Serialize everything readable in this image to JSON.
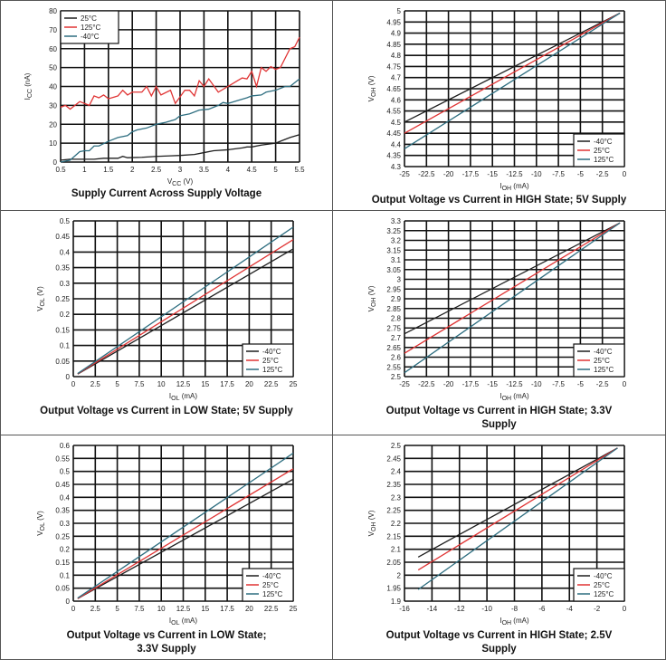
{
  "colors": {
    "-40°C": "#1e1e1e",
    "25°C": "#1e1e1e",
    "125°C": "#e03434",
    "grid": "#111"
  },
  "chart_data": [
    {
      "type": "line",
      "title": "Supply Current Across Supply Voltage",
      "xlabel": {
        "main": "V",
        "sub": "CC",
        "unit": " (V)"
      },
      "ylabel": {
        "main": "I",
        "sub": "CC",
        "unit": " (nA)"
      },
      "xlim": [
        0.5,
        5.5
      ],
      "xstep": 0.5,
      "ylim": [
        0,
        80
      ],
      "ystep": 10,
      "legend": "top-left",
      "grid": true,
      "series": [
        {
          "name": "25°C",
          "color": "#1e1e1e",
          "x": [
            0.5,
            0.7,
            1,
            1.2,
            1.4,
            1.7,
            1.8,
            1.9,
            2.2,
            2.5,
            2.8,
            3,
            3.3,
            3.5,
            3.7,
            4,
            4.3,
            4.4,
            4.5,
            4.7,
            5,
            5.1,
            5.3,
            5.5
          ],
          "y": [
            1,
            1.5,
            1.5,
            1.5,
            2,
            2,
            3,
            2.3,
            2.5,
            3,
            3.3,
            3.5,
            4,
            5,
            6,
            6.5,
            7.5,
            8,
            8,
            9,
            10,
            11,
            13,
            14.5
          ]
        },
        {
          "name": "125°C",
          "color": "#e03434",
          "x": [
            0.5,
            0.6,
            0.7,
            0.9,
            1.1,
            1.2,
            1.3,
            1.4,
            1.5,
            1.7,
            1.8,
            1.9,
            2,
            2.2,
            2.3,
            2.4,
            2.5,
            2.6,
            2.8,
            2.9,
            3.1,
            3.2,
            3.3,
            3.4,
            3.5,
            3.6,
            3.8,
            4,
            4.2,
            4.3,
            4.4,
            4.5,
            4.6,
            4.7,
            4.8,
            4.9,
            5,
            5.1,
            5.3,
            5.4,
            5.5
          ],
          "y": [
            29,
            30,
            28,
            32,
            30,
            35,
            34,
            35.5,
            33.5,
            35,
            38,
            35.5,
            37,
            37,
            40,
            35,
            40,
            35.5,
            38,
            31,
            38,
            38,
            35,
            43,
            40,
            44,
            37,
            40,
            43,
            44.5,
            44,
            48,
            40,
            50,
            48,
            50.5,
            49,
            50,
            60,
            61,
            66
          ]
        },
        {
          "name": "-40°C",
          "color": "#2e6e80",
          "x": [
            0.5,
            0.7,
            0.9,
            1,
            1.1,
            1.2,
            1.3,
            1.5,
            1.7,
            1.9,
            2,
            2.1,
            2.3,
            2.5,
            2.7,
            2.9,
            3,
            3.2,
            3.4,
            3.6,
            3.8,
            3.9,
            4,
            4.2,
            4.4,
            4.5,
            4.7,
            4.8,
            5,
            5.2,
            5.3,
            5.5
          ],
          "y": [
            0,
            1,
            5.5,
            6,
            6,
            8.5,
            8.5,
            11,
            13,
            14,
            16,
            17,
            18,
            20,
            21,
            22.5,
            24.5,
            25.5,
            27.5,
            28,
            30,
            31.5,
            31,
            32.5,
            34,
            35,
            35.5,
            37,
            38,
            40,
            40,
            44
          ]
        }
      ]
    },
    {
      "type": "line",
      "title": "Output Voltage vs Current in HIGH State; 5V Supply",
      "xlabel": {
        "main": "I",
        "sub": "OH",
        "unit": " (mA)"
      },
      "ylabel": {
        "main": "V",
        "sub": "OH",
        "unit": " (V)"
      },
      "xlim": [
        -25,
        0
      ],
      "xstep": 2.5,
      "ylim": [
        4.3,
        5
      ],
      "ystep": 0.05,
      "legend": "bottom-right",
      "grid": true,
      "series": [
        {
          "name": "-40°C",
          "color": "#1e1e1e",
          "x": [
            -25,
            -0.5
          ],
          "y": [
            4.5,
            4.99
          ]
        },
        {
          "name": "25°C",
          "color": "#e03434",
          "x": [
            -25,
            -0.5
          ],
          "y": [
            4.45,
            4.99
          ]
        },
        {
          "name": "125°C",
          "color": "#2e6e80",
          "x": [
            -25,
            -0.5
          ],
          "y": [
            4.38,
            4.99
          ]
        }
      ]
    },
    {
      "type": "line",
      "title": "Output Voltage vs Current in LOW State; 5V Supply",
      "xlabel": {
        "main": "I",
        "sub": "OL",
        "unit": " (mA)"
      },
      "ylabel": {
        "main": "V",
        "sub": "OL",
        "unit": " (V)"
      },
      "xlim": [
        0,
        25
      ],
      "xstep": 2.5,
      "ylim": [
        0,
        0.5
      ],
      "ystep": 0.05,
      "legend": "bottom-right",
      "grid": true,
      "series": [
        {
          "name": "-40°C",
          "color": "#1e1e1e",
          "x": [
            0.5,
            25
          ],
          "y": [
            0.008,
            0.41
          ]
        },
        {
          "name": "25°C",
          "color": "#e03434",
          "x": [
            0.5,
            25
          ],
          "y": [
            0.009,
            0.44
          ]
        },
        {
          "name": "125°C",
          "color": "#2e6e80",
          "x": [
            0.5,
            25
          ],
          "y": [
            0.01,
            0.48
          ]
        }
      ]
    },
    {
      "type": "line",
      "title": "Output Voltage vs Current in HIGH State; 3.3V Supply",
      "xlabel": {
        "main": "I",
        "sub": "OH",
        "unit": " (mA)"
      },
      "ylabel": {
        "main": "V",
        "sub": "OH",
        "unit": " (V)"
      },
      "xlim": [
        -25,
        0
      ],
      "xstep": 2.5,
      "ylim": [
        2.5,
        3.3
      ],
      "ystep": 0.05,
      "legend": "bottom-right",
      "grid": true,
      "series": [
        {
          "name": "-40°C",
          "color": "#1e1e1e",
          "x": [
            -25,
            -0.5
          ],
          "y": [
            2.72,
            3.29
          ]
        },
        {
          "name": "25°C",
          "color": "#e03434",
          "x": [
            -25,
            -0.5
          ],
          "y": [
            2.62,
            3.29
          ]
        },
        {
          "name": "125°C",
          "color": "#2e6e80",
          "x": [
            -25,
            -0.5
          ],
          "y": [
            2.52,
            3.29
          ]
        }
      ]
    },
    {
      "type": "line",
      "title": "Output Voltage vs Current in LOW State; 3.3V Supply",
      "xlabel": {
        "main": "I",
        "sub": "OL",
        "unit": " (mA)"
      },
      "ylabel": {
        "main": "V",
        "sub": "OL",
        "unit": " (V)"
      },
      "xlim": [
        0,
        25
      ],
      "xstep": 2.5,
      "ylim": [
        0,
        0.6
      ],
      "ystep": 0.05,
      "legend": "bottom-right",
      "grid": true,
      "series": [
        {
          "name": "-40°C",
          "color": "#1e1e1e",
          "x": [
            0.5,
            25
          ],
          "y": [
            0.01,
            0.47
          ]
        },
        {
          "name": "25°C",
          "color": "#e03434",
          "x": [
            0.5,
            25
          ],
          "y": [
            0.01,
            0.51
          ]
        },
        {
          "name": "125°C",
          "color": "#2e6e80",
          "x": [
            0.5,
            25
          ],
          "y": [
            0.012,
            0.57
          ]
        }
      ]
    },
    {
      "type": "line",
      "title": "Output Voltage vs Current in HIGH State; 2.5V Supply",
      "xlabel": {
        "main": "I",
        "sub": "OH",
        "unit": " (mA)"
      },
      "ylabel": {
        "main": "V",
        "sub": "OH",
        "unit": " (V)"
      },
      "xlim": [
        -16,
        0
      ],
      "xstep": 2,
      "ylim": [
        1.9,
        2.5
      ],
      "ystep": 0.05,
      "legend": "bottom-right",
      "grid": true,
      "series": [
        {
          "name": "-40°C",
          "color": "#1e1e1e",
          "x": [
            -15,
            -0.5
          ],
          "y": [
            2.07,
            2.49
          ]
        },
        {
          "name": "25°C",
          "color": "#e03434",
          "x": [
            -15,
            -0.5
          ],
          "y": [
            2.02,
            2.49
          ]
        },
        {
          "name": "125°C",
          "color": "#2e6e80",
          "x": [
            -15,
            -0.5
          ],
          "y": [
            1.945,
            2.49
          ]
        }
      ]
    }
  ]
}
